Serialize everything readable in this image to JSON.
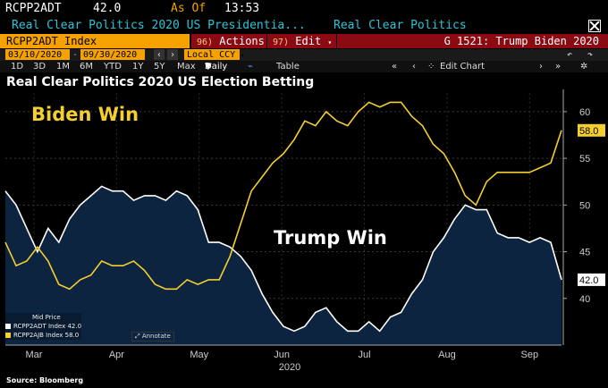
{
  "header": {
    "ticker": "RCPP2ADT",
    "value": "42.0",
    "as_of_label": "As Of",
    "time": "13:53"
  },
  "subheader": {
    "name": "Real Clear Politics 2020 US Presidentia...",
    "source": "Real Clear Politics"
  },
  "toolbar": {
    "index": "RCPP2ADT Index",
    "actions_num": "96)",
    "actions_label": "Actions",
    "edit_num": "97)",
    "edit_label": "Edit",
    "graph_label": "G 1521: Trump Biden 2020"
  },
  "dates": {
    "start": "03/10/2020",
    "end": "09/30/2020",
    "currency": "Local CCY"
  },
  "ranges": {
    "items": [
      "1D",
      "3D",
      "1M",
      "6M",
      "YTD",
      "1Y",
      "5Y",
      "Max"
    ],
    "frequency": "Daily",
    "table_label": "Table",
    "edit_chart_label": "Edit Chart"
  },
  "chart_title": "Real Clear Politics 2020 US Election Betting",
  "annotations": {
    "biden": "Biden Win",
    "trump": "Trump Win"
  },
  "legend": {
    "title": "Mid Price",
    "items": [
      "RCPP2ADT Index 42.0",
      "RCPP2AJB Index 58.0"
    ]
  },
  "annotate_label": "Annotate",
  "source": "Source: Bloomberg",
  "colors": {
    "biden": "#f4cf2f",
    "trump": "#ffffff",
    "area": "#0d2440",
    "accent": "#f5a100",
    "toolbar_red": "#8c0b12",
    "cyan": "#2ec4d6"
  },
  "chart_data": {
    "type": "line",
    "x_labels": [
      "Mar",
      "Apr",
      "May",
      "Jun",
      "Jul",
      "Aug",
      "Sep"
    ],
    "x_year": "2020",
    "y_ticks": [
      40,
      45,
      50,
      55,
      60
    ],
    "ylim": [
      35,
      62
    ],
    "last_values": {
      "RCPP2AJB": "58.0",
      "RCPP2ADT": "42.0"
    },
    "series": [
      {
        "name": "RCPP2ADT Index",
        "color": "#ffffff",
        "values": [
          51.5,
          50,
          47.5,
          45,
          47.5,
          46,
          48.5,
          50,
          51,
          52,
          51.5,
          51.5,
          50.5,
          51,
          51,
          50.5,
          51.5,
          51,
          49.5,
          46,
          46,
          45.5,
          44.5,
          43,
          40.5,
          38.5,
          37,
          36.5,
          37,
          38.5,
          39,
          37.5,
          36.5,
          36.5,
          37.5,
          36.5,
          38,
          38.5,
          40.5,
          42,
          45,
          46.5,
          48.5,
          50,
          49.5,
          49.5,
          47,
          46.5,
          46.5,
          46,
          46.5,
          46,
          42
        ]
      },
      {
        "name": "RCPP2AJB Index",
        "color": "#f4cf2f",
        "values": [
          46,
          43.5,
          44,
          45.5,
          44,
          41.5,
          41,
          42,
          42.5,
          44,
          43.5,
          43.5,
          44,
          43,
          41.5,
          41,
          41,
          42,
          41.5,
          42,
          42,
          44.5,
          48,
          51.5,
          53,
          54.5,
          55.5,
          57,
          59,
          58.5,
          60,
          59,
          58.5,
          60,
          61,
          60.5,
          61,
          61,
          59.5,
          58.5,
          56.5,
          55.5,
          53.5,
          51,
          50,
          52.5,
          53.5,
          53.5,
          53.5,
          53.5,
          54,
          54.5,
          58
        ]
      }
    ]
  }
}
